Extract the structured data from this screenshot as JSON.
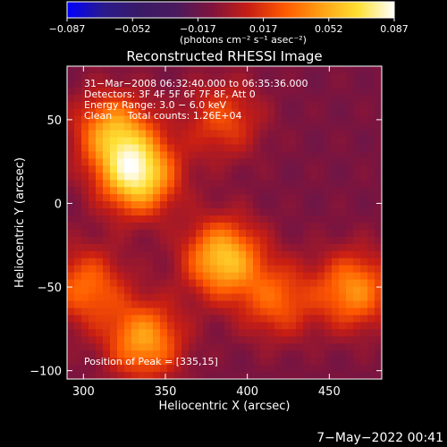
{
  "colorbar": {
    "ticks": [
      "−0.087",
      "−0.052",
      "−0.017",
      "0.017",
      "0.052",
      "0.087"
    ],
    "unit_label": "(photons cm⁻² s⁻¹ asec⁻²)",
    "colormap": [
      "#0000ff",
      "#2a1a8c",
      "#3a1a66",
      "#4a1a5e",
      "#80143c",
      "#c81e14",
      "#ff5a00",
      "#ffa014",
      "#ffe032",
      "#ffffff"
    ]
  },
  "chart_data": {
    "type": "heatmap",
    "title": "Reconstructed RHESSI Image",
    "xlabel": "Heliocentric X (arcsec)",
    "ylabel": "Heliocentric Y (arcsec)",
    "xlim": [
      290,
      482
    ],
    "ylim": [
      -105,
      82
    ],
    "x_ticks": [
      300,
      350,
      400,
      450
    ],
    "y_ticks": [
      50,
      0,
      -50,
      -100
    ],
    "value_range": [
      -0.087,
      0.087
    ],
    "sources": [
      {
        "x": 333,
        "y": 17,
        "peak": 0.087
      },
      {
        "x": 385,
        "y": -33,
        "peak": 0.072
      },
      {
        "x": 318,
        "y": 43,
        "peak": 0.06
      },
      {
        "x": 465,
        "y": -52,
        "peak": 0.055
      },
      {
        "x": 337,
        "y": -82,
        "peak": 0.06
      },
      {
        "x": 302,
        "y": -50,
        "peak": 0.045
      },
      {
        "x": 385,
        "y": 50,
        "peak": 0.035
      },
      {
        "x": 418,
        "y": -58,
        "peak": 0.04
      }
    ],
    "annotations": [
      "31−Mar−2008 06:32:40.000 to 06:35:36.000",
      "Detectors: 3F 4F 5F 6F 7F 8F, Att 0",
      "Energy Range: 3.0 − 6.0 keV",
      "Clean     Total counts: 1.26E+04"
    ],
    "peak_text": "Position of Peak = [335,15]"
  },
  "timestamp": "7−May−2022 00:41"
}
